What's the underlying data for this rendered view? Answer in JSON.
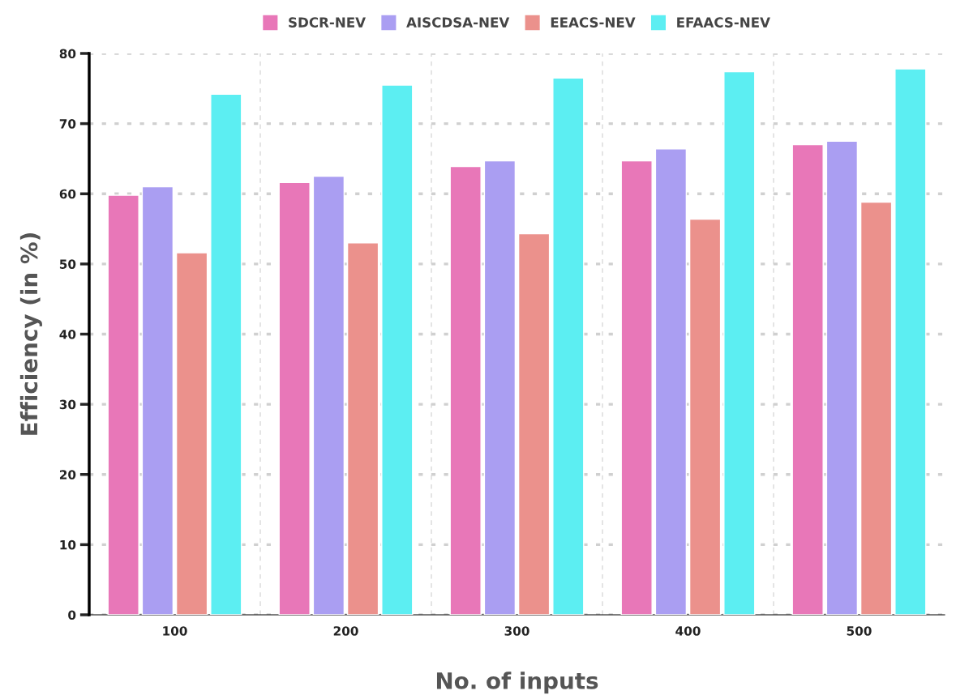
{
  "chart_data": {
    "type": "bar",
    "xlabel": "No. of inputs",
    "ylabel": "Efficiency (in %)",
    "categories": [
      "100",
      "200",
      "300",
      "400",
      "500"
    ],
    "series": [
      {
        "name": "SDCR-NEV",
        "color": "#e877b8",
        "values": [
          59.8,
          61.6,
          63.9,
          64.7,
          67.0
        ]
      },
      {
        "name": "AISCDSA-NEV",
        "color": "#aa9ef2",
        "values": [
          61.0,
          62.5,
          64.7,
          66.4,
          67.5
        ]
      },
      {
        "name": "EEACS-NEV",
        "color": "#eb918c",
        "values": [
          51.6,
          53.0,
          54.3,
          56.4,
          58.8
        ]
      },
      {
        "name": "EFAACS-NEV",
        "color": "#5ceef2",
        "values": [
          74.2,
          75.5,
          76.5,
          77.4,
          77.8
        ]
      }
    ],
    "ylim": [
      0,
      80
    ],
    "yticks": [
      0,
      10,
      20,
      30,
      40,
      50,
      60,
      70,
      80
    ],
    "grid": true,
    "legend": "top"
  }
}
